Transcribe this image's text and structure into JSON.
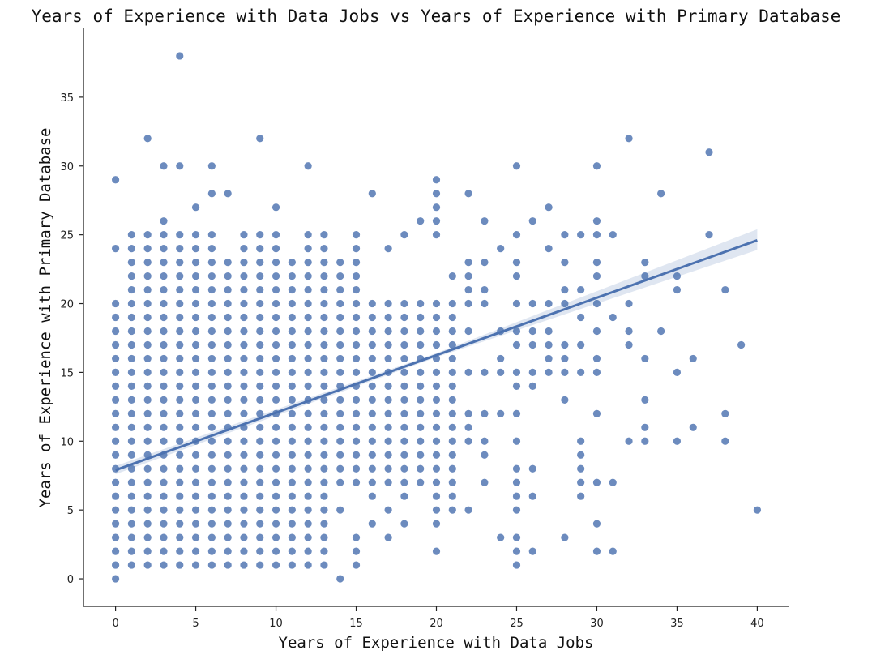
{
  "chart_data": {
    "type": "scatter",
    "title": "Years of Experience with Data Jobs vs Years of Experience with Primary Database",
    "xlabel": "Years of Experience with Data Jobs",
    "ylabel": "Years of Experience with Primary Database",
    "xlim": [
      -2,
      42
    ],
    "ylim": [
      -2,
      40
    ],
    "xticks": [
      0,
      5,
      10,
      15,
      20,
      25,
      30,
      35,
      40
    ],
    "yticks": [
      0,
      5,
      10,
      15,
      20,
      25,
      30,
      35
    ],
    "grid": false,
    "color": "#4c72b0",
    "band_color": "#4c72b0",
    "dense_region": {
      "x_max": 21,
      "y_max": 20,
      "y_cap_by_x": {
        "0": 20,
        "1": 25,
        "2": 25,
        "3": 25,
        "4": 25,
        "5": 25,
        "6": 25,
        "7": 23,
        "8": 25,
        "9": 25,
        "10": 25,
        "11": 23,
        "12": 25,
        "13": 25,
        "14": 23,
        "15": 25,
        "16": 20,
        "17": 24,
        "18": 25,
        "19": 26,
        "20": 25,
        "21": 22
      }
    },
    "points": [
      [
        4,
        38
      ],
      [
        2,
        32
      ],
      [
        9,
        32
      ],
      [
        3,
        30
      ],
      [
        4,
        30
      ],
      [
        6,
        30
      ],
      [
        12,
        30
      ],
      [
        0,
        29
      ],
      [
        6,
        28
      ],
      [
        7,
        28
      ],
      [
        16,
        28
      ],
      [
        5,
        27
      ],
      [
        10,
        27
      ],
      [
        3,
        26
      ],
      [
        0,
        24
      ],
      [
        4,
        24
      ],
      [
        0,
        8
      ],
      [
        0,
        7
      ],
      [
        0,
        6
      ],
      [
        0,
        0
      ],
      [
        0,
        1
      ],
      [
        0,
        2
      ],
      [
        0,
        3
      ],
      [
        0,
        4
      ],
      [
        0,
        5
      ],
      [
        0,
        9
      ],
      [
        0,
        10
      ],
      [
        0,
        11
      ],
      [
        0,
        12
      ],
      [
        0,
        13
      ],
      [
        0,
        14
      ],
      [
        0,
        15
      ],
      [
        0,
        16
      ],
      [
        0,
        17
      ],
      [
        0,
        18
      ],
      [
        13,
        1
      ],
      [
        14,
        0
      ],
      [
        14,
        5
      ],
      [
        15,
        1
      ],
      [
        15,
        3
      ],
      [
        15,
        2
      ],
      [
        16,
        4
      ],
      [
        16,
        6
      ],
      [
        17,
        3
      ],
      [
        17,
        5
      ],
      [
        18,
        4
      ],
      [
        18,
        6
      ],
      [
        19,
        7
      ],
      [
        20,
        2
      ],
      [
        20,
        4
      ],
      [
        20,
        5
      ],
      [
        20,
        6
      ],
      [
        20,
        8
      ],
      [
        21,
        5
      ],
      [
        21,
        6
      ],
      [
        21,
        9
      ],
      [
        22,
        5
      ],
      [
        22,
        28
      ],
      [
        22,
        23
      ],
      [
        22,
        22
      ],
      [
        22,
        21
      ],
      [
        22,
        20
      ],
      [
        22,
        18
      ],
      [
        22,
        15
      ],
      [
        22,
        12
      ],
      [
        22,
        11
      ],
      [
        22,
        10
      ],
      [
        20,
        29
      ],
      [
        20,
        28
      ],
      [
        20,
        27
      ],
      [
        19,
        26
      ],
      [
        20,
        26
      ],
      [
        21,
        17
      ],
      [
        21,
        16
      ],
      [
        23,
        26
      ],
      [
        23,
        23
      ],
      [
        23,
        21
      ],
      [
        23,
        20
      ],
      [
        23,
        15
      ],
      [
        23,
        12
      ],
      [
        23,
        10
      ],
      [
        23,
        9
      ],
      [
        23,
        7
      ],
      [
        24,
        24
      ],
      [
        24,
        18
      ],
      [
        24,
        16
      ],
      [
        24,
        15
      ],
      [
        24,
        12
      ],
      [
        24,
        3
      ],
      [
        25,
        30
      ],
      [
        25,
        25
      ],
      [
        25,
        23
      ],
      [
        25,
        22
      ],
      [
        25,
        20
      ],
      [
        25,
        18
      ],
      [
        25,
        17
      ],
      [
        25,
        15
      ],
      [
        25,
        14
      ],
      [
        25,
        12
      ],
      [
        25,
        10
      ],
      [
        25,
        8
      ],
      [
        25,
        7
      ],
      [
        25,
        6
      ],
      [
        25,
        5
      ],
      [
        25,
        3
      ],
      [
        25,
        2
      ],
      [
        25,
        1
      ],
      [
        26,
        26
      ],
      [
        26,
        20
      ],
      [
        26,
        18
      ],
      [
        26,
        17
      ],
      [
        26,
        15
      ],
      [
        26,
        14
      ],
      [
        26,
        8
      ],
      [
        26,
        6
      ],
      [
        26,
        2
      ],
      [
        27,
        27
      ],
      [
        27,
        24
      ],
      [
        27,
        20
      ],
      [
        27,
        18
      ],
      [
        27,
        17
      ],
      [
        27,
        16
      ],
      [
        27,
        15
      ],
      [
        28,
        25
      ],
      [
        28,
        23
      ],
      [
        28,
        21
      ],
      [
        28,
        20
      ],
      [
        28,
        17
      ],
      [
        28,
        16
      ],
      [
        28,
        15
      ],
      [
        28,
        13
      ],
      [
        28,
        3
      ],
      [
        29,
        25
      ],
      [
        29,
        21
      ],
      [
        29,
        19
      ],
      [
        29,
        17
      ],
      [
        29,
        15
      ],
      [
        29,
        10
      ],
      [
        29,
        9
      ],
      [
        29,
        8
      ],
      [
        29,
        7
      ],
      [
        29,
        6
      ],
      [
        30,
        30
      ],
      [
        30,
        26
      ],
      [
        30,
        25
      ],
      [
        30,
        23
      ],
      [
        30,
        22
      ],
      [
        30,
        20
      ],
      [
        30,
        18
      ],
      [
        30,
        16
      ],
      [
        30,
        15
      ],
      [
        30,
        12
      ],
      [
        30,
        7
      ],
      [
        30,
        4
      ],
      [
        30,
        2
      ],
      [
        31,
        25
      ],
      [
        31,
        19
      ],
      [
        31,
        7
      ],
      [
        31,
        2
      ],
      [
        32,
        32
      ],
      [
        32,
        20
      ],
      [
        32,
        18
      ],
      [
        32,
        17
      ],
      [
        32,
        10
      ],
      [
        33,
        23
      ],
      [
        33,
        22
      ],
      [
        33,
        16
      ],
      [
        33,
        13
      ],
      [
        33,
        11
      ],
      [
        33,
        10
      ],
      [
        34,
        28
      ],
      [
        34,
        18
      ],
      [
        35,
        22
      ],
      [
        35,
        21
      ],
      [
        35,
        15
      ],
      [
        35,
        10
      ],
      [
        36,
        16
      ],
      [
        36,
        11
      ],
      [
        37,
        31
      ],
      [
        37,
        25
      ],
      [
        38,
        21
      ],
      [
        38,
        12
      ],
      [
        38,
        10
      ],
      [
        39,
        17
      ],
      [
        40,
        5
      ]
    ],
    "regression": {
      "x0": 0,
      "y0": 7.9,
      "x1": 40,
      "y1": 24.6,
      "ci_low_end": 23.9,
      "ci_high_end": 25.4
    }
  }
}
